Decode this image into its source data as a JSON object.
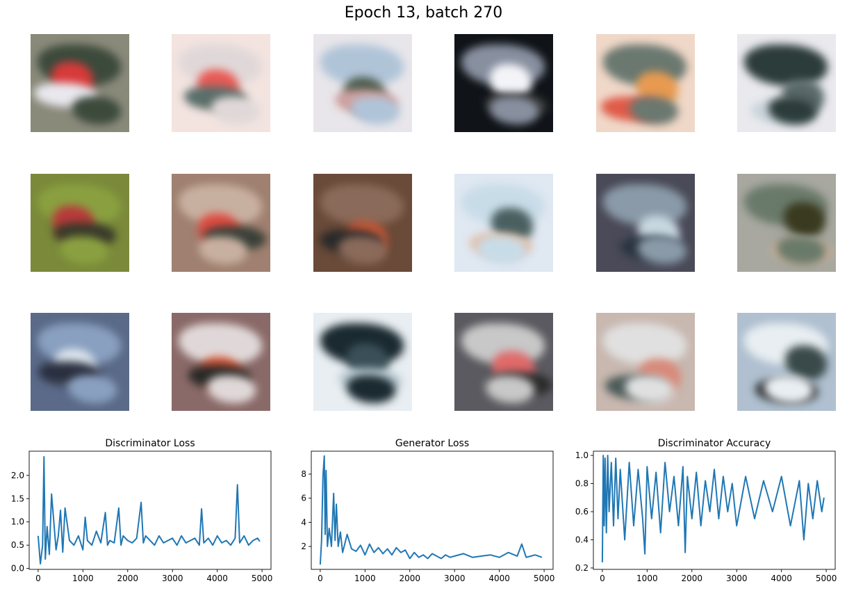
{
  "figure": {
    "title": "Epoch 13, batch 270"
  },
  "samples": [
    {
      "bg": "#8a8a7a",
      "a": "#d83a3a",
      "b": "#e8e8ee",
      "c": "#3c4a3c"
    },
    {
      "bg": "#f3e4e0",
      "a": "#e85a55",
      "b": "#5a6e6a",
      "c": "#e0d8d8"
    },
    {
      "bg": "#e8e6ea",
      "a": "#4a5a4a",
      "b": "#d0a0a0",
      "c": "#b0c4d8"
    },
    {
      "bg": "#101418",
      "a": "#f4f4f8",
      "b": "#3a3a3a",
      "c": "#8890a0"
    },
    {
      "bg": "#f0d8c8",
      "a": "#e89a50",
      "b": "#e05a48",
      "c": "#6a7870"
    },
    {
      "bg": "#eaeaee",
      "a": "#5a6a6a",
      "b": "#c8d4da",
      "c": "#2c3c3a"
    },
    {
      "bg": "#7a8a3a",
      "a": "#b83a3a",
      "b": "#3a3a2a",
      "c": "#8aa040"
    },
    {
      "bg": "#a08070",
      "a": "#e04a40",
      "b": "#3a4038",
      "c": "#c8b0a0"
    },
    {
      "bg": "#6a4a38",
      "a": "#c85a3a",
      "b": "#2a2a2a",
      "c": "#8a6a5a"
    },
    {
      "bg": "#e0e8f2",
      "a": "#4a6060",
      "b": "#e0c0a8",
      "c": "#c8dce8"
    },
    {
      "bg": "#4a4a58",
      "a": "#c8d8e0",
      "b": "#2a3440",
      "c": "#8a9aa8"
    },
    {
      "bg": "#a8a8a0",
      "a": "#3a3a20",
      "b": "#c8b098",
      "c": "#6a7a6a"
    },
    {
      "bg": "#5a6a88",
      "a": "#e0e8f0",
      "b": "#2a3040",
      "c": "#8aa0c0"
    },
    {
      "bg": "#8a6a68",
      "a": "#d85a3a",
      "b": "#2a2a28",
      "c": "#e0d8d8"
    },
    {
      "bg": "#e8eef2",
      "a": "#3a5058",
      "b": "#b8c8d0",
      "c": "#1a2a30"
    },
    {
      "bg": "#5a5a60",
      "a": "#e06a6a",
      "b": "#2a2a2a",
      "c": "#c8c8c8"
    },
    {
      "bg": "#c8b8b0",
      "a": "#d88a7a",
      "b": "#4a5a58",
      "c": "#e0e0e0"
    },
    {
      "bg": "#b0c0d0",
      "a": "#3a4a4a",
      "b": "#2a2a2a",
      "c": "#e8eef2"
    }
  ],
  "chart_data": [
    {
      "type": "line",
      "title": "Discriminator Loss",
      "xlim": [
        -200,
        5200
      ],
      "ylim": [
        -0.02,
        2.52
      ],
      "xticks": [
        0,
        1000,
        2000,
        3000,
        4000,
        5000
      ],
      "yticks": [
        0.0,
        0.5,
        1.0,
        1.5,
        2.0
      ],
      "ytick_labels": [
        "0.0",
        "0.5",
        "1.0",
        "1.5",
        "2.0"
      ],
      "color": "#1f77b4",
      "series": [
        {
          "x": [
            0,
            50,
            100,
            130,
            160,
            200,
            250,
            300,
            400,
            450,
            500,
            550,
            600,
            700,
            800,
            900,
            1000,
            1050,
            1100,
            1200,
            1300,
            1400,
            1500,
            1550,
            1600,
            1700,
            1800,
            1850,
            1900,
            2000,
            2100,
            2200,
            2300,
            2350,
            2400,
            2500,
            2600,
            2700,
            2800,
            2900,
            3000,
            3100,
            3200,
            3300,
            3400,
            3500,
            3600,
            3650,
            3700,
            3800,
            3900,
            4000,
            4100,
            4200,
            4300,
            4400,
            4450,
            4500,
            4600,
            4700,
            4800,
            4900,
            4950
          ],
          "y": [
            0.7,
            0.1,
            0.5,
            2.4,
            0.2,
            0.9,
            0.3,
            1.6,
            0.4,
            0.7,
            1.25,
            0.35,
            1.3,
            0.6,
            0.5,
            0.7,
            0.4,
            1.1,
            0.6,
            0.5,
            0.8,
            0.55,
            1.2,
            0.5,
            0.6,
            0.55,
            1.3,
            0.5,
            0.7,
            0.6,
            0.55,
            0.65,
            1.42,
            0.55,
            0.7,
            0.6,
            0.5,
            0.7,
            0.55,
            0.6,
            0.65,
            0.5,
            0.7,
            0.55,
            0.6,
            0.65,
            0.5,
            1.28,
            0.55,
            0.65,
            0.5,
            0.7,
            0.55,
            0.6,
            0.5,
            0.65,
            1.8,
            0.55,
            0.7,
            0.5,
            0.6,
            0.65,
            0.58
          ]
        }
      ]
    },
    {
      "type": "line",
      "title": "Generator Loss",
      "xlim": [
        -200,
        5200
      ],
      "ylim": [
        0.1,
        9.9
      ],
      "xticks": [
        0,
        1000,
        2000,
        3000,
        4000,
        5000
      ],
      "yticks": [
        2,
        4,
        6,
        8
      ],
      "ytick_labels": [
        "2",
        "4",
        "6",
        "8"
      ],
      "color": "#1f77b4",
      "series": [
        {
          "x": [
            0,
            30,
            60,
            90,
            110,
            130,
            160,
            200,
            250,
            300,
            330,
            360,
            400,
            450,
            500,
            600,
            700,
            800,
            900,
            1000,
            1100,
            1200,
            1300,
            1400,
            1500,
            1600,
            1700,
            1800,
            1900,
            2000,
            2100,
            2200,
            2300,
            2400,
            2500,
            2600,
            2700,
            2800,
            2900,
            3000,
            3200,
            3400,
            3600,
            3800,
            4000,
            4200,
            4400,
            4500,
            4600,
            4800,
            4950
          ],
          "y": [
            0.5,
            2.5,
            7.8,
            9.5,
            3.0,
            8.3,
            2.0,
            3.5,
            2.0,
            6.4,
            2.5,
            5.5,
            2.0,
            3.2,
            1.5,
            3.0,
            1.8,
            1.6,
            2.1,
            1.3,
            2.2,
            1.5,
            1.9,
            1.4,
            1.8,
            1.3,
            1.9,
            1.5,
            1.7,
            1.0,
            1.5,
            1.1,
            1.3,
            1.0,
            1.4,
            1.2,
            1.0,
            1.3,
            1.1,
            1.2,
            1.4,
            1.1,
            1.2,
            1.3,
            1.1,
            1.5,
            1.2,
            2.2,
            1.1,
            1.3,
            1.1
          ]
        }
      ]
    },
    {
      "type": "line",
      "title": "Discriminator Accuracy",
      "xlim": [
        -200,
        5200
      ],
      "ylim": [
        0.19,
        1.03
      ],
      "xticks": [
        0,
        1000,
        2000,
        3000,
        4000,
        5000
      ],
      "yticks": [
        0.2,
        0.4,
        0.6,
        0.8,
        1.0
      ],
      "ytick_labels": [
        "0.2",
        "0.4",
        "0.6",
        "0.8",
        "1.0"
      ],
      "color": "#1f77b4",
      "series": [
        {
          "x": [
            0,
            20,
            40,
            60,
            90,
            120,
            150,
            200,
            250,
            300,
            350,
            400,
            500,
            600,
            700,
            800,
            900,
            950,
            1000,
            1100,
            1200,
            1300,
            1400,
            1500,
            1600,
            1700,
            1800,
            1850,
            1900,
            2000,
            2100,
            2200,
            2300,
            2400,
            2500,
            2600,
            2700,
            2800,
            2900,
            3000,
            3200,
            3400,
            3600,
            3800,
            4000,
            4200,
            4400,
            4500,
            4600,
            4700,
            4800,
            4900,
            4950
          ],
          "y": [
            0.24,
            1.0,
            0.5,
            0.98,
            0.45,
            1.0,
            0.6,
            0.95,
            0.5,
            0.98,
            0.55,
            0.9,
            0.4,
            0.95,
            0.5,
            0.9,
            0.55,
            0.3,
            0.92,
            0.55,
            0.88,
            0.45,
            0.95,
            0.6,
            0.85,
            0.5,
            0.92,
            0.31,
            0.85,
            0.55,
            0.88,
            0.5,
            0.82,
            0.6,
            0.9,
            0.55,
            0.85,
            0.6,
            0.8,
            0.5,
            0.85,
            0.55,
            0.82,
            0.6,
            0.85,
            0.5,
            0.82,
            0.4,
            0.8,
            0.55,
            0.82,
            0.6,
            0.7
          ]
        }
      ]
    }
  ]
}
